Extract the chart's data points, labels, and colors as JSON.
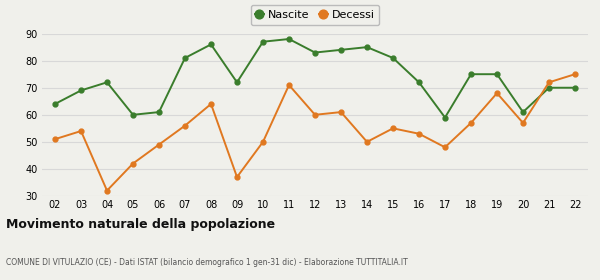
{
  "years": [
    "02",
    "03",
    "04",
    "05",
    "06",
    "07",
    "08",
    "09",
    "10",
    "11",
    "12",
    "13",
    "14",
    "15",
    "16",
    "17",
    "18",
    "19",
    "20",
    "21",
    "22"
  ],
  "nascite": [
    64,
    69,
    72,
    60,
    61,
    81,
    86,
    72,
    87,
    88,
    83,
    84,
    85,
    81,
    72,
    59,
    75,
    75,
    61,
    70,
    70
  ],
  "decessi": [
    51,
    54,
    32,
    42,
    49,
    56,
    64,
    37,
    50,
    71,
    60,
    61,
    50,
    55,
    53,
    48,
    57,
    68,
    57,
    72,
    75
  ],
  "nascite_color": "#3a7d2c",
  "decessi_color": "#e07820",
  "bg_color": "#f0f0eb",
  "grid_color": "#d8d8d8",
  "ylim": [
    30,
    90
  ],
  "yticks": [
    30,
    40,
    50,
    60,
    70,
    80,
    90
  ],
  "title": "Movimento naturale della popolazione",
  "subtitle": "COMUNE DI VITULAZIO (CE) - Dati ISTAT (bilancio demografico 1 gen-31 dic) - Elaborazione TUTTITALIA.IT",
  "legend_nascite": "Nascite",
  "legend_decessi": "Decessi",
  "marker_size": 3.5,
  "line_width": 1.4
}
